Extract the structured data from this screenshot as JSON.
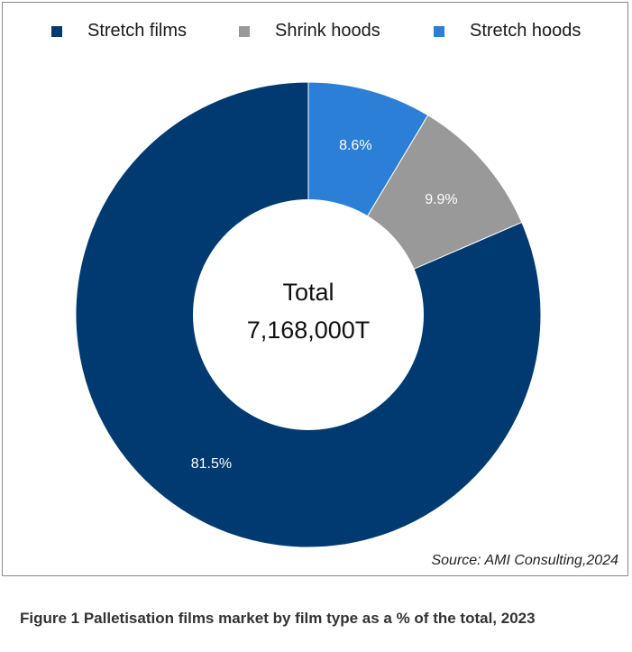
{
  "chart_data": {
    "type": "pie",
    "categories": [
      "Stretch films",
      "Shrink hoods",
      "Stretch hoods"
    ],
    "values": [
      81.5,
      9.9,
      8.6
    ],
    "data_labels": [
      "81.5%",
      "9.9%",
      "8.6%"
    ],
    "colors": [
      "#003a70",
      "#999999",
      "#2b7fd6"
    ],
    "legend_position": "top",
    "center_label_line1": "Total",
    "center_label_line2": "7,168,000T",
    "source": "Source: AMI Consulting,2024"
  },
  "caption": "Figure 1 Palletisation films market by film type as a % of the total, 2023"
}
